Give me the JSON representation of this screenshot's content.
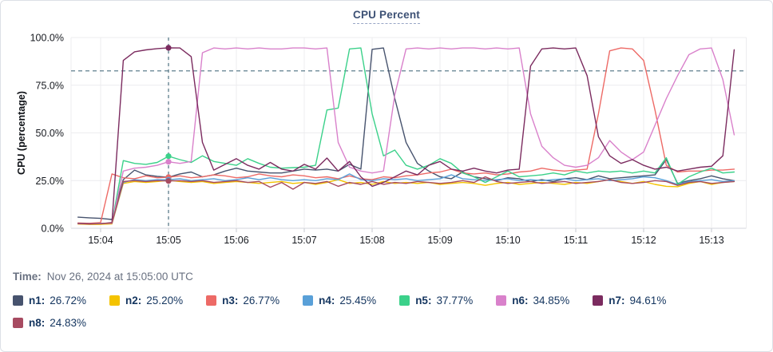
{
  "title": "CPU Percent",
  "time_row": {
    "label": "Time:",
    "value": "Nov 26, 2024 at 15:05:00 UTC"
  },
  "colors": {
    "title_text": "#3d5175",
    "grid": "#ececef",
    "axis": "#d3d6dc",
    "tick": "#c7cad1",
    "tick_text": "#16191f",
    "dashed_guides": "#4d7080",
    "legend_text": "#14355f",
    "time_text": "#697181"
  },
  "chart_data": {
    "type": "line",
    "title": "CPU Percent",
    "xlabel": "",
    "ylabel": "CPU (percentage)",
    "ylim": [
      0,
      100
    ],
    "ytick_values": [
      0,
      25,
      50,
      75,
      100
    ],
    "ytick_labels": [
      "0.0%",
      "25.0%",
      "50.0%",
      "75.0%",
      "100.0%"
    ],
    "xtick_labels": [
      "15:04",
      "15:05",
      "15:06",
      "15:07",
      "15:08",
      "15:09",
      "15:10",
      "15:11",
      "15:12",
      "15:13"
    ],
    "xtick_indices": [
      2,
      8,
      14,
      20,
      26,
      32,
      38,
      44,
      50,
      56
    ],
    "time_start": "15:03:40",
    "time_step_seconds": 10,
    "grid": true,
    "legend_position": "bottom",
    "threshold_percent": 82.5,
    "crosshair_index": 8,
    "crosshair_time": "15:05:00",
    "legend_rows": [
      [
        "n1",
        "n2",
        "n3",
        "n4",
        "n5",
        "n6",
        "n7"
      ],
      [
        "n8"
      ]
    ],
    "series": [
      {
        "name": "n1",
        "color": "#47536e",
        "legend_value": "26.72%",
        "values": [
          5.8,
          5.5,
          5.2,
          4.6,
          25.5,
          30.5,
          28.0,
          27.2,
          26.72,
          28.5,
          29.5,
          27.0,
          28.0,
          30.0,
          31.5,
          30.0,
          29.5,
          29.0,
          29.0,
          30.0,
          31.0,
          30.5,
          31.0,
          30.0,
          33.5,
          31.0,
          93.8,
          94.5,
          68.0,
          45.0,
          34.0,
          30.0,
          27.0,
          26.0,
          29.5,
          27.0,
          26.0,
          25.0,
          26.5,
          26.0,
          24.5,
          25.5,
          24.5,
          26.0,
          26.5,
          25.5,
          27.5,
          26.0,
          26.5,
          27.0,
          27.5,
          28.0,
          36.0,
          23.5,
          25.0,
          26.0,
          27.5,
          26.0,
          25.0
        ]
      },
      {
        "name": "n2",
        "color": "#f4c300",
        "legend_value": "25.20%",
        "values": [
          2.2,
          2.0,
          2.1,
          2.3,
          23.5,
          24.5,
          24.0,
          24.5,
          25.2,
          24.5,
          24.0,
          24.5,
          23.5,
          24.0,
          24.5,
          24.0,
          23.5,
          24.0,
          24.5,
          23.5,
          24.0,
          23.0,
          24.0,
          25.5,
          23.5,
          24.0,
          23.0,
          24.5,
          23.5,
          24.0,
          23.5,
          24.0,
          23.0,
          23.5,
          24.0,
          23.5,
          22.5,
          23.5,
          24.0,
          23.0,
          23.5,
          24.0,
          23.5,
          23.0,
          24.0,
          23.5,
          24.5,
          25.5,
          24.5,
          23.5,
          24.5,
          23.0,
          22.0,
          21.8,
          23.5,
          24.5,
          23.0,
          24.0,
          24.5
        ]
      },
      {
        "name": "n3",
        "color": "#ed6a66",
        "legend_value": "26.77%",
        "values": [
          2.8,
          2.6,
          3.0,
          28.5,
          26.5,
          26.0,
          27.5,
          26.5,
          26.77,
          27.5,
          26.5,
          27.0,
          28.0,
          27.5,
          26.5,
          27.0,
          28.5,
          27.5,
          27.0,
          28.0,
          27.5,
          26.5,
          27.0,
          26.0,
          27.5,
          26.0,
          25.5,
          27.0,
          26.5,
          27.5,
          28.0,
          29.0,
          29.5,
          31.0,
          29.0,
          28.5,
          29.0,
          28.0,
          28.5,
          29.5,
          30.0,
          31.5,
          30.5,
          30.0,
          30.5,
          31.0,
          60.0,
          93.0,
          94.5,
          94.0,
          88.0,
          62.0,
          33.0,
          29.5,
          30.0,
          30.0,
          30.5,
          30.5,
          31.0
        ]
      },
      {
        "name": "n4",
        "color": "#59a0d8",
        "legend_value": "25.45%",
        "values": [
          2.5,
          2.4,
          2.5,
          2.6,
          24.0,
          25.5,
          25.0,
          25.5,
          25.45,
          26.0,
          25.0,
          25.5,
          26.0,
          25.0,
          25.5,
          26.5,
          25.5,
          26.5,
          25.5,
          25.0,
          25.5,
          25.0,
          26.0,
          25.5,
          28.5,
          25.5,
          25.0,
          26.0,
          25.5,
          26.0,
          25.0,
          25.5,
          26.0,
          28.0,
          26.0,
          25.5,
          25.0,
          25.5,
          26.0,
          25.0,
          25.5,
          25.0,
          25.5,
          26.0,
          25.0,
          25.5,
          26.0,
          25.0,
          25.5,
          26.0,
          27.0,
          26.5,
          25.0,
          23.0,
          24.5,
          25.0,
          25.5,
          24.5,
          25.0
        ]
      },
      {
        "name": "n5",
        "color": "#3bd18a",
        "legend_value": "37.77%",
        "values": [
          2.6,
          2.4,
          2.5,
          2.7,
          35.5,
          34.0,
          33.5,
          34.5,
          37.77,
          36.0,
          34.5,
          38.0,
          35.0,
          34.0,
          33.0,
          36.5,
          34.0,
          32.0,
          31.5,
          31.8,
          32.0,
          33.0,
          62.0,
          63.0,
          94.0,
          94.5,
          60.0,
          38.0,
          41.0,
          33.0,
          31.0,
          33.0,
          36.5,
          34.0,
          29.0,
          27.0,
          24.0,
          27.0,
          30.0,
          27.0,
          27.5,
          28.0,
          29.0,
          28.0,
          30.0,
          29.0,
          30.0,
          29.5,
          30.0,
          29.0,
          30.0,
          29.0,
          37.0,
          23.0,
          27.0,
          29.5,
          31.5,
          29.0,
          29.5
        ]
      },
      {
        "name": "n6",
        "color": "#d981cb",
        "legend_value": "34.85%",
        "values": [
          2.4,
          2.3,
          2.5,
          2.6,
          30.0,
          31.5,
          32.0,
          33.0,
          34.85,
          34.0,
          35.0,
          92.0,
          94.5,
          94.0,
          94.5,
          94.0,
          94.5,
          94.0,
          94.0,
          94.5,
          94.5,
          94.0,
          94.5,
          45.0,
          32.0,
          30.0,
          29.0,
          30.0,
          70.0,
          94.0,
          94.5,
          94.0,
          94.5,
          94.0,
          94.5,
          94.5,
          94.0,
          94.5,
          94.0,
          94.5,
          60.0,
          43.0,
          37.0,
          33.0,
          32.0,
          33.0,
          37.0,
          46.0,
          40.0,
          36.0,
          40.0,
          54.0,
          68.0,
          80.0,
          91.0,
          94.0,
          94.5,
          78.0,
          49.0
        ]
      },
      {
        "name": "n7",
        "color": "#7b2b5f",
        "legend_value": "94.61%",
        "values": [
          2.5,
          2.3,
          2.4,
          3.0,
          88.0,
          92.5,
          93.5,
          94.2,
          94.61,
          94.5,
          90.0,
          45.0,
          30.5,
          33.5,
          36.5,
          33.0,
          31.0,
          34.5,
          31.0,
          30.0,
          33.5,
          31.0,
          36.8,
          30.0,
          35.0,
          27.0,
          22.0,
          24.0,
          27.0,
          30.0,
          28.0,
          33.0,
          35.0,
          31.0,
          30.0,
          31.5,
          30.0,
          29.0,
          30.5,
          31.0,
          85.0,
          94.0,
          94.5,
          94.0,
          94.5,
          80.0,
          48.0,
          38.0,
          34.0,
          36.0,
          33.0,
          31.0,
          32.0,
          30.0,
          31.0,
          32.0,
          32.5,
          38.0,
          93.6
        ]
      },
      {
        "name": "n8",
        "color": "#a74b61",
        "legend_value": "24.83%",
        "values": [
          2.6,
          2.5,
          2.4,
          2.8,
          24.5,
          25.0,
          24.5,
          25.0,
          24.83,
          25.0,
          24.5,
          25.0,
          24.0,
          24.5,
          25.0,
          24.0,
          24.5,
          21.5,
          24.0,
          20.5,
          24.0,
          23.5,
          24.5,
          22.0,
          24.0,
          23.0,
          24.5,
          23.0,
          24.0,
          23.5,
          24.5,
          24.0,
          23.5,
          24.0,
          25.0,
          24.0,
          27.0,
          24.5,
          23.5,
          24.0,
          24.5,
          23.5,
          24.0,
          24.5,
          23.5,
          24.0,
          24.5,
          25.5,
          24.0,
          23.5,
          24.0,
          25.0,
          24.5,
          22.5,
          24.0,
          24.5,
          23.5,
          24.0,
          24.5
        ]
      }
    ]
  }
}
